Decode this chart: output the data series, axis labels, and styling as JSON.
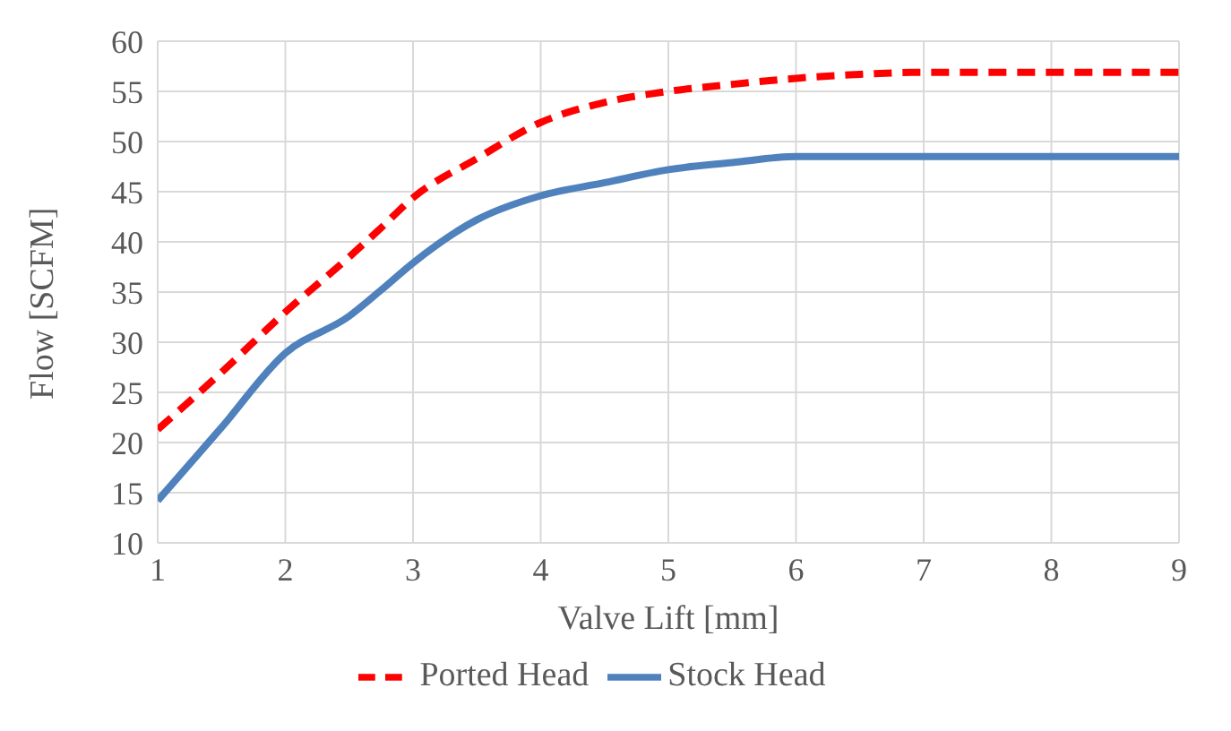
{
  "chart_data": {
    "type": "line",
    "xlabel": "Valve Lift [mm]",
    "ylabel": "Flow [SCFM]",
    "x": [
      1,
      1.5,
      2,
      2.5,
      2.75,
      3,
      3.5,
      4,
      4.5,
      5,
      5.5,
      6,
      6.5,
      7,
      8,
      9
    ],
    "series": [
      {
        "name": "Stock Head",
        "color": "#4f81bd",
        "line_style": "solid",
        "values": [
          14.2,
          21.5,
          28.9,
          32.6,
          35.2,
          37.9,
          42.2,
          44.6,
          45.9,
          47.2,
          47.9,
          48.5,
          48.5,
          48.5,
          48.5,
          48.5
        ]
      },
      {
        "name": "Ported Head",
        "color": "#ff0000",
        "line_style": "dashed",
        "values": [
          21.3,
          27.0,
          33.0,
          38.5,
          41.4,
          44.4,
          48.3,
          51.9,
          53.9,
          55.0,
          55.7,
          56.3,
          56.7,
          56.9,
          56.9,
          56.9
        ]
      }
    ],
    "xlim": [
      1,
      9
    ],
    "xticks": [
      1,
      2,
      3,
      4,
      5,
      6,
      7,
      8,
      9
    ],
    "ylim": [
      10,
      60
    ],
    "yticks": [
      10,
      15,
      20,
      25,
      30,
      35,
      40,
      45,
      50,
      55,
      60
    ],
    "grid": true,
    "legend": "bottom",
    "marker": "none"
  }
}
